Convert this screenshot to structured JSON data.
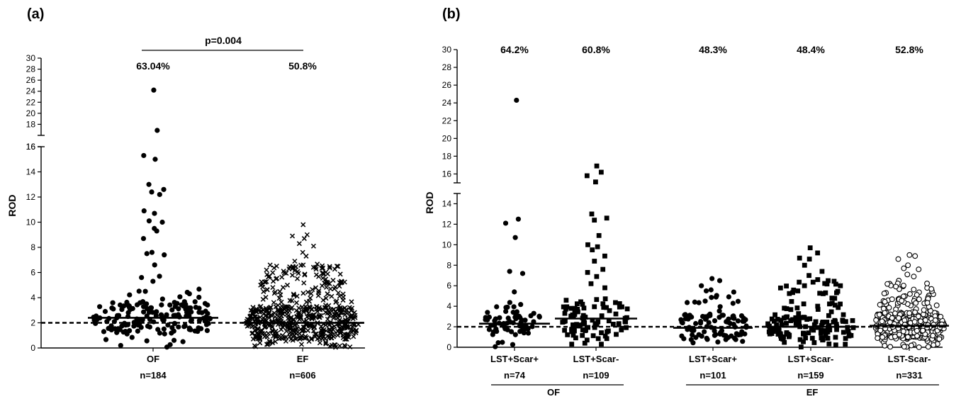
{
  "chart_data": [
    {
      "panel_label": "(a)",
      "type": "scatter",
      "subtype": "dot-plot",
      "ylabel": "ROD",
      "ylim": [
        0,
        30
      ],
      "axis_break": [
        16,
        16
      ],
      "y_ticks_lower": [
        "0",
        "2",
        "4",
        "6",
        "8",
        "10",
        "12",
        "14",
        "16"
      ],
      "y_ticks_upper": [
        "16",
        "18",
        "20",
        "22",
        "24",
        "26",
        "28",
        "30"
      ],
      "reference_line": {
        "y": 2,
        "style": "dashed"
      },
      "categories": [
        "OF",
        "EF"
      ],
      "n_labels": [
        "n=184",
        "n=606"
      ],
      "percentages": [
        "63.04%",
        "50.8%"
      ],
      "medians": [
        2.4,
        2.0
      ],
      "comparison": {
        "label": "p=0.004",
        "from": "OF",
        "to": "EF"
      },
      "series": [
        {
          "category": "OF",
          "marker": "filled-circle",
          "outliers": [
            24.2,
            16.9,
            15.3,
            15.0,
            13.0,
            12.6,
            12.4,
            12.2,
            10.9,
            10.7,
            10.1,
            10.0,
            9.5,
            9.3,
            8.7,
            7.6,
            7.5,
            7.4,
            6.6,
            5.7,
            5.6,
            5.3
          ],
          "bulk_range": [
            0,
            4.9
          ]
        },
        {
          "category": "EF",
          "marker": "x",
          "outliers": [
            9.8,
            9.0,
            8.9,
            8.7,
            8.3,
            8.1,
            7.6,
            7.3,
            6.9,
            6.6
          ],
          "bulk_range": [
            0,
            6.7
          ]
        }
      ]
    },
    {
      "panel_label": "(b)",
      "type": "scatter",
      "subtype": "dot-plot",
      "ylabel": "ROD",
      "ylim": [
        0,
        30
      ],
      "axis_break": [
        15,
        15
      ],
      "y_ticks_lower": [
        "0",
        "2",
        "4",
        "6",
        "8",
        "10",
        "12",
        "14"
      ],
      "y_ticks_upper": [
        "16",
        "18",
        "20",
        "22",
        "24",
        "26",
        "28",
        "30"
      ],
      "reference_line": {
        "y": 2,
        "style": "dashed"
      },
      "categories": [
        "LST+Scar+",
        "LST+Scar-",
        "LST+Scar+",
        "LST+Scar-",
        "LST-Scar-"
      ],
      "n_labels": [
        "n=74",
        "n=109",
        "n=101",
        "n=159",
        "n=331"
      ],
      "percentages": [
        "64.2%",
        "60.8%",
        "48.3%",
        "48.4%",
        "52.8%"
      ],
      "medians": [
        2.3,
        2.8,
        1.9,
        2.0,
        2.1
      ],
      "groups": [
        {
          "label": "OF",
          "categories": [
            0,
            1
          ]
        },
        {
          "label": "EF",
          "categories": [
            2,
            3,
            4
          ]
        }
      ],
      "series": [
        {
          "category": "LST+Scar+",
          "marker": "filled-circle",
          "outliers": [
            24.3,
            12.5,
            12.1,
            10.7,
            7.4,
            7.2,
            5.4
          ],
          "bulk_range": [
            0,
            4.5
          ]
        },
        {
          "category": "LST+Scar-",
          "marker": "filled-square",
          "outliers": [
            16.9,
            16.2,
            15.8,
            15.1,
            13.0,
            12.6,
            12.4,
            10.9,
            10.0,
            9.8,
            9.5,
            8.9,
            8.4,
            7.6,
            7.3,
            6.9,
            6.2,
            5.8
          ],
          "bulk_range": [
            0,
            4.9
          ]
        },
        {
          "category": "LST+Scar+",
          "marker": "filled-circle",
          "outliers": [
            6.7,
            6.5,
            6.0,
            5.6,
            5.5
          ],
          "bulk_range": [
            0,
            5.4
          ]
        },
        {
          "category": "LST+Scar-",
          "marker": "filled-square",
          "outliers": [
            9.7,
            9.2,
            8.7,
            8.6,
            8.0,
            7.4,
            7.0,
            6.6
          ],
          "bulk_range": [
            0,
            6.5
          ]
        },
        {
          "category": "LST-Scar-",
          "marker": "open-circle",
          "outliers": [
            9.0,
            8.9,
            8.6,
            8.0,
            7.7,
            7.6,
            7.1,
            6.9,
            6.5
          ],
          "bulk_range": [
            0,
            6.3
          ]
        }
      ]
    }
  ]
}
